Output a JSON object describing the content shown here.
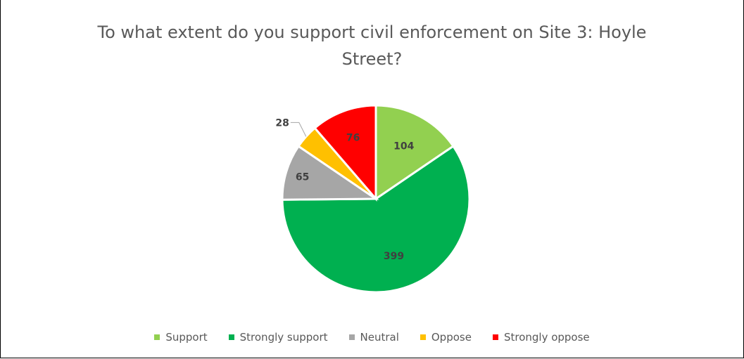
{
  "chart_data": {
    "type": "pie",
    "title_line1": "To what extent do you support civil enforcement on Site 3: Hoyle",
    "title_line2": "Street?",
    "slices": [
      {
        "name": "Support",
        "value": 104,
        "color": "#92d050"
      },
      {
        "name": "Strongly support",
        "value": 399,
        "color": "#00b050"
      },
      {
        "name": "Neutral",
        "value": 65,
        "color": "#a6a6a6"
      },
      {
        "name": "Oppose",
        "value": 28,
        "color": "#ffc000"
      },
      {
        "name": "Strongly oppose",
        "value": 76,
        "color": "#ff0000"
      }
    ],
    "legend_position": "bottom"
  }
}
